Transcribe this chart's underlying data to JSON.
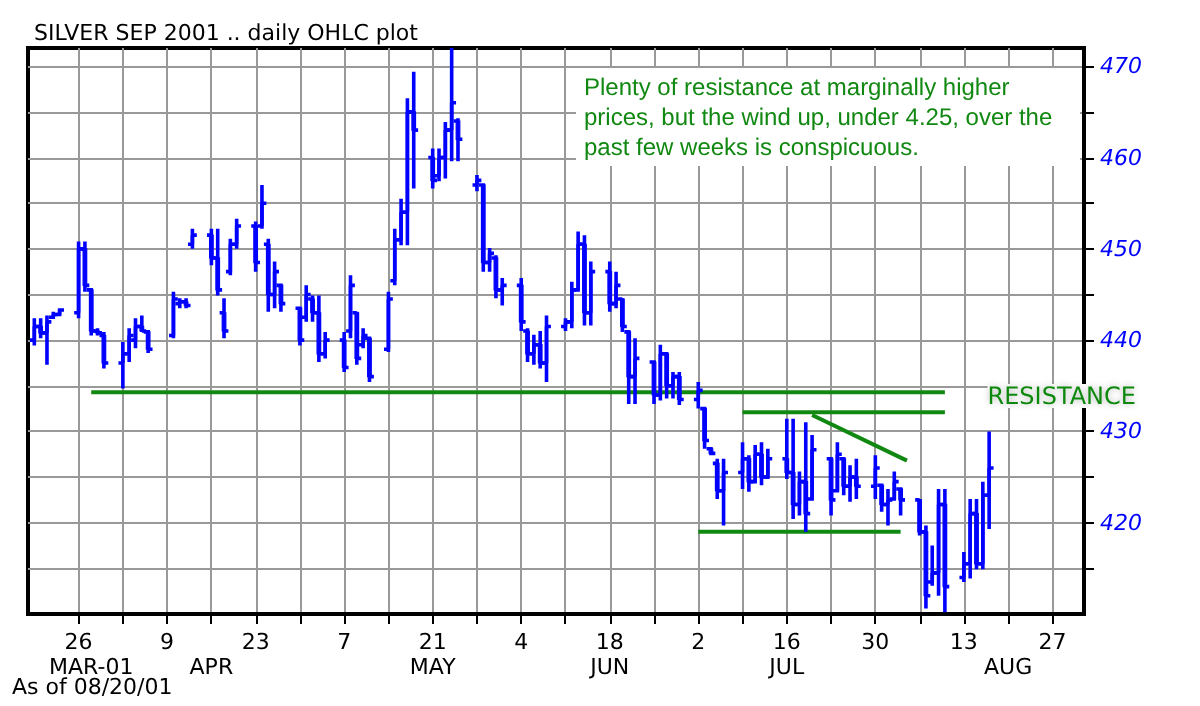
{
  "chart_data": {
    "type": "candlestick",
    "title": "SILVER SEP 2001 .. daily OHLC plot",
    "color": "#0000ff",
    "x": [
      "2001-03-19",
      "2001-03-20",
      "2001-03-21",
      "2001-03-22",
      "2001-03-23",
      "2001-03-26",
      "2001-03-27",
      "2001-03-28",
      "2001-03-29",
      "2001-03-30",
      "2001-04-02",
      "2001-04-03",
      "2001-04-04",
      "2001-04-05",
      "2001-04-06",
      "2001-04-10",
      "2001-04-11",
      "2001-04-12",
      "2001-04-13",
      "2001-04-16",
      "2001-04-17",
      "2001-04-18",
      "2001-04-19",
      "2001-04-20",
      "2001-04-23",
      "2001-04-24",
      "2001-04-25",
      "2001-04-26",
      "2001-04-27",
      "2001-04-30",
      "2001-05-01",
      "2001-05-02",
      "2001-05-03",
      "2001-05-04",
      "2001-05-07",
      "2001-05-08",
      "2001-05-09",
      "2001-05-10",
      "2001-05-11",
      "2001-05-14",
      "2001-05-15",
      "2001-05-16",
      "2001-05-17",
      "2001-05-18",
      "2001-05-21",
      "2001-05-22",
      "2001-05-23",
      "2001-05-24",
      "2001-05-25",
      "2001-05-28",
      "2001-05-29",
      "2001-05-30",
      "2001-05-31",
      "2001-06-01",
      "2001-06-04",
      "2001-06-05",
      "2001-06-06",
      "2001-06-07",
      "2001-06-08",
      "2001-06-11",
      "2001-06-12",
      "2001-06-13",
      "2001-06-14",
      "2001-06-15",
      "2001-06-18",
      "2001-06-19",
      "2001-06-20",
      "2001-06-21",
      "2001-06-22",
      "2001-06-25",
      "2001-06-26",
      "2001-06-27",
      "2001-06-28",
      "2001-06-29",
      "2001-07-02",
      "2001-07-03",
      "2001-07-04",
      "2001-07-05",
      "2001-07-06",
      "2001-07-09",
      "2001-07-10",
      "2001-07-11",
      "2001-07-12",
      "2001-07-13",
      "2001-07-16",
      "2001-07-17",
      "2001-07-18",
      "2001-07-19",
      "2001-07-20",
      "2001-07-23",
      "2001-07-24",
      "2001-07-25",
      "2001-07-26",
      "2001-07-27",
      "2001-07-30",
      "2001-07-31",
      "2001-08-01",
      "2001-08-02",
      "2001-08-03",
      "2001-08-06",
      "2001-08-07",
      "2001-08-08",
      "2001-08-09",
      "2001-08-10",
      "2001-08-13",
      "2001-08-14",
      "2001-08-15",
      "2001-08-16",
      "2001-08-17"
    ],
    "ohlc": [
      [
        440.0,
        442.4,
        439.4,
        441.5
      ],
      [
        441.5,
        442.4,
        440.2,
        440.8
      ],
      [
        440.8,
        442.7,
        437.3,
        442.0
      ],
      [
        442.5,
        443.1,
        442.4,
        442.8
      ],
      [
        442.8,
        443.5,
        442.7,
        443.3
      ],
      [
        443.0,
        450.8,
        442.4,
        450.0
      ],
      [
        450.0,
        450.8,
        445.3,
        446.0
      ],
      [
        445.5,
        445.7,
        440.5,
        441.0
      ],
      [
        441.0,
        441.3,
        440.5,
        440.8
      ],
      [
        440.5,
        440.9,
        436.9,
        437.5
      ],
      [
        437.5,
        439.8,
        434.7,
        438.5
      ],
      [
        438.5,
        441.3,
        437.6,
        440.5
      ],
      [
        440.0,
        442.4,
        439.1,
        441.5
      ],
      [
        441.5,
        442.7,
        440.9,
        441.0
      ],
      [
        440.9,
        440.9,
        438.6,
        439.0
      ],
      [
        440.5,
        445.3,
        440.2,
        444.5
      ],
      [
        444.0,
        444.6,
        443.5,
        444.2
      ],
      [
        444.2,
        444.6,
        443.5,
        443.8
      ],
      [
        450.5,
        452.2,
        450.0,
        451.5
      ],
      [
        451.5,
        452.2,
        448.2,
        449.0
      ],
      [
        449.0,
        452.2,
        444.9,
        445.5
      ],
      [
        443.0,
        444.6,
        440.2,
        441.0
      ],
      [
        447.5,
        451.1,
        447.1,
        450.5
      ],
      [
        450.5,
        453.3,
        450.0,
        452.5
      ],
      [
        452.5,
        453.0,
        447.5,
        448.5
      ],
      [
        452.5,
        457.0,
        452.2,
        455.0
      ],
      [
        450.5,
        451.1,
        443.1,
        445.0
      ],
      [
        445.0,
        448.6,
        443.5,
        447.5
      ],
      [
        446.0,
        446.0,
        443.1,
        444.0
      ],
      [
        443.5,
        443.5,
        439.4,
        440.0
      ],
      [
        442.5,
        446.0,
        442.0,
        445.0
      ],
      [
        444.5,
        444.9,
        442.0,
        443.0
      ],
      [
        443.0,
        444.9,
        437.6,
        438.5
      ],
      [
        438.5,
        440.9,
        438.0,
        440.0
      ],
      [
        440.0,
        440.9,
        436.5,
        437.0
      ],
      [
        441.0,
        447.1,
        440.2,
        446.0
      ],
      [
        443.0,
        443.1,
        437.3,
        438.0
      ],
      [
        439.5,
        441.3,
        439.1,
        440.5
      ],
      [
        440.2,
        440.2,
        435.4,
        436.0
      ],
      [
        439.0,
        445.3,
        438.7,
        444.5
      ],
      [
        446.5,
        452.2,
        446.0,
        451.0
      ],
      [
        451.0,
        455.5,
        450.4,
        454.0
      ],
      [
        454.0,
        466.5,
        450.4,
        465.0
      ],
      [
        465.0,
        469.4,
        456.6,
        463.0
      ],
      [
        460.0,
        461.0,
        456.6,
        457.5
      ],
      [
        458.0,
        461.0,
        457.4,
        460.0
      ],
      [
        460.0,
        463.9,
        457.7,
        463.0
      ],
      [
        463.0,
        472.0,
        459.6,
        466.0
      ],
      [
        464.0,
        464.3,
        459.6,
        462.0
      ],
      [
        457.0,
        458.1,
        456.3,
        457.5
      ],
      [
        457.0,
        457.0,
        447.5,
        448.5
      ],
      [
        448.5,
        450.1,
        447.5,
        449.5
      ],
      [
        449.0,
        449.3,
        444.6,
        445.5
      ],
      [
        445.5,
        446.8,
        443.8,
        446.0
      ],
      [
        446.0,
        446.8,
        441.0,
        442.0
      ],
      [
        441.0,
        441.3,
        437.6,
        438.5
      ],
      [
        438.5,
        440.6,
        437.3,
        439.5
      ],
      [
        439.5,
        441.0,
        436.9,
        437.5
      ],
      [
        437.5,
        442.7,
        435.4,
        441.5
      ],
      [
        441.5,
        442.4,
        441.0,
        442.0
      ],
      [
        442.0,
        446.4,
        441.3,
        445.5
      ],
      [
        445.5,
        451.9,
        445.3,
        450.5
      ],
      [
        450.5,
        451.5,
        441.6,
        443.0
      ],
      [
        443.0,
        448.6,
        441.6,
        447.5
      ],
      [
        447.5,
        448.6,
        443.1,
        444.0
      ],
      [
        444.0,
        447.5,
        443.5,
        446.0
      ],
      [
        444.5,
        444.6,
        440.9,
        441.5
      ],
      [
        440.9,
        440.9,
        433.0,
        436.0
      ],
      [
        436.0,
        440.2,
        433.0,
        438.0
      ],
      [
        437.6,
        437.6,
        433.0,
        434.0
      ],
      [
        434.0,
        439.5,
        433.4,
        438.5
      ],
      [
        438.5,
        438.7,
        433.6,
        435.0
      ],
      [
        435.0,
        436.5,
        433.6,
        436.0
      ],
      [
        436.0,
        436.5,
        432.9,
        433.5
      ],
      [
        433.5,
        435.4,
        432.5,
        434.5
      ],
      [
        432.5,
        432.5,
        428.1,
        429.0
      ],
      [
        428.1,
        428.1,
        427.4,
        427.6
      ],
      [
        426.5,
        427.0,
        422.6,
        423.5
      ],
      [
        423.5,
        427.0,
        419.7,
        425.5
      ],
      [
        425.5,
        428.8,
        423.7,
        427.0
      ],
      [
        427.0,
        427.4,
        423.4,
        424.5
      ],
      [
        424.5,
        428.5,
        424.5,
        427.5
      ],
      [
        427.5,
        428.8,
        424.1,
        425.0
      ],
      [
        425.0,
        428.1,
        424.8,
        427.0
      ],
      [
        427.0,
        431.4,
        424.8,
        425.5
      ],
      [
        425.5,
        431.4,
        420.4,
        422.0
      ],
      [
        422.0,
        425.6,
        420.8,
        424.5
      ],
      [
        424.5,
        431.0,
        419.0,
        421.0
      ],
      [
        422.6,
        429.6,
        422.6,
        428.0
      ],
      [
        427.0,
        427.0,
        420.8,
        422.5
      ],
      [
        423.5,
        428.8,
        423.4,
        427.5
      ],
      [
        427.0,
        427.0,
        423.0,
        424.0
      ],
      [
        424.0,
        426.3,
        422.3,
        425.0
      ],
      [
        425.0,
        427.0,
        422.6,
        424.0
      ],
      [
        424.0,
        427.4,
        422.6,
        426.0
      ],
      [
        424.1,
        424.1,
        421.2,
        422.0
      ],
      [
        422.0,
        423.7,
        419.7,
        422.5
      ],
      [
        422.6,
        425.6,
        422.6,
        424.5
      ],
      [
        423.7,
        423.7,
        420.8,
        422.5
      ],
      [
        422.5,
        422.6,
        418.6,
        419.0
      ],
      [
        419.0,
        419.7,
        410.6,
        412.0
      ],
      [
        413.5,
        417.5,
        413.1,
        414.5
      ],
      [
        414.5,
        423.7,
        412.0,
        422.0
      ],
      [
        422.0,
        423.7,
        410.2,
        413.0
      ],
      [
        414.0,
        416.8,
        413.5,
        415.5
      ],
      [
        415.5,
        422.6,
        413.9,
        421.0
      ],
      [
        421.0,
        422.6,
        414.9,
        415.5
      ],
      [
        415.5,
        424.5,
        414.9,
        423.0
      ],
      [
        423.0,
        430.0,
        419.3,
        426.0
      ]
    ],
    "series": [
      {
        "type": "line",
        "color": "#118811",
        "x": [
          "2001-03-28",
          "2001-08-10"
        ],
        "values": [
          434.3,
          434.3
        ]
      },
      {
        "type": "line",
        "color": "#118811",
        "x": [
          "2001-07-09",
          "2001-08-10"
        ],
        "values": [
          432.1,
          432.1
        ]
      },
      {
        "type": "line",
        "color": "#118811",
        "x": [
          "2001-07-02",
          "2001-08-03"
        ],
        "values": [
          419.0,
          419.0
        ]
      },
      {
        "type": "line",
        "color": "#118811",
        "x": [
          "2001-07-20",
          "2001-08-04"
        ],
        "values": [
          431.8,
          426.8
        ]
      }
    ],
    "annotations": [
      "Plenty of resistance at marginally higher prices, but the wind up, under 4.25, over the past few weeks is conspicuous.",
      "RESISTANCE",
      "As of 08/20/01"
    ],
    "xlim": [
      "2001-03-18",
      "2001-09-01"
    ],
    "xticks": [
      {
        "value": "2001-03-26",
        "label": "26"
      },
      {
        "value": "2001-04-02",
        "label": null
      },
      {
        "value": "2001-04-09",
        "label": "9"
      },
      {
        "value": "2001-04-16",
        "label": null
      },
      {
        "value": "2001-04-23",
        "label": "23"
      },
      {
        "value": "2001-04-30",
        "label": null
      },
      {
        "value": "2001-05-07",
        "label": "7"
      },
      {
        "value": "2001-05-14",
        "label": null
      },
      {
        "value": "2001-05-21",
        "label": "21"
      },
      {
        "value": "2001-05-28",
        "label": null
      },
      {
        "value": "2001-06-04",
        "label": "4"
      },
      {
        "value": "2001-06-11",
        "label": null
      },
      {
        "value": "2001-06-18",
        "label": "18"
      },
      {
        "value": "2001-06-25",
        "label": null
      },
      {
        "value": "2001-07-02",
        "label": "2"
      },
      {
        "value": "2001-07-09",
        "label": null
      },
      {
        "value": "2001-07-16",
        "label": "16"
      },
      {
        "value": "2001-07-23",
        "label": null
      },
      {
        "value": "2001-07-30",
        "label": "30"
      },
      {
        "value": "2001-08-06",
        "label": null
      },
      {
        "value": "2001-08-13",
        "label": "13"
      },
      {
        "value": "2001-08-20",
        "label": null
      },
      {
        "value": "2001-08-27",
        "label": "27"
      }
    ],
    "x2lim": [
      "2001-03-18",
      "2001-09-01"
    ],
    "x2ticks": [
      {
        "value": "2001-03-28",
        "label": "MAR-01"
      },
      {
        "value": "2001-04-16",
        "label": "APR"
      },
      {
        "value": "2001-05-21",
        "label": "MAY"
      },
      {
        "value": "2001-06-18",
        "label": "JUN"
      },
      {
        "value": "2001-07-16",
        "label": "JUL"
      },
      {
        "value": "2001-08-20",
        "label": "AUG"
      }
    ],
    "ylim": [
      410,
      472
    ],
    "yticks": [
      {
        "value": 415,
        "label": null
      },
      420,
      {
        "value": 425,
        "label": null
      },
      430,
      {
        "value": 435,
        "label": null
      },
      440,
      {
        "value": 445,
        "label": null
      },
      450,
      {
        "value": 455,
        "label": null
      },
      460,
      {
        "value": 465,
        "label": null
      },
      470
    ],
    "grid": true
  }
}
